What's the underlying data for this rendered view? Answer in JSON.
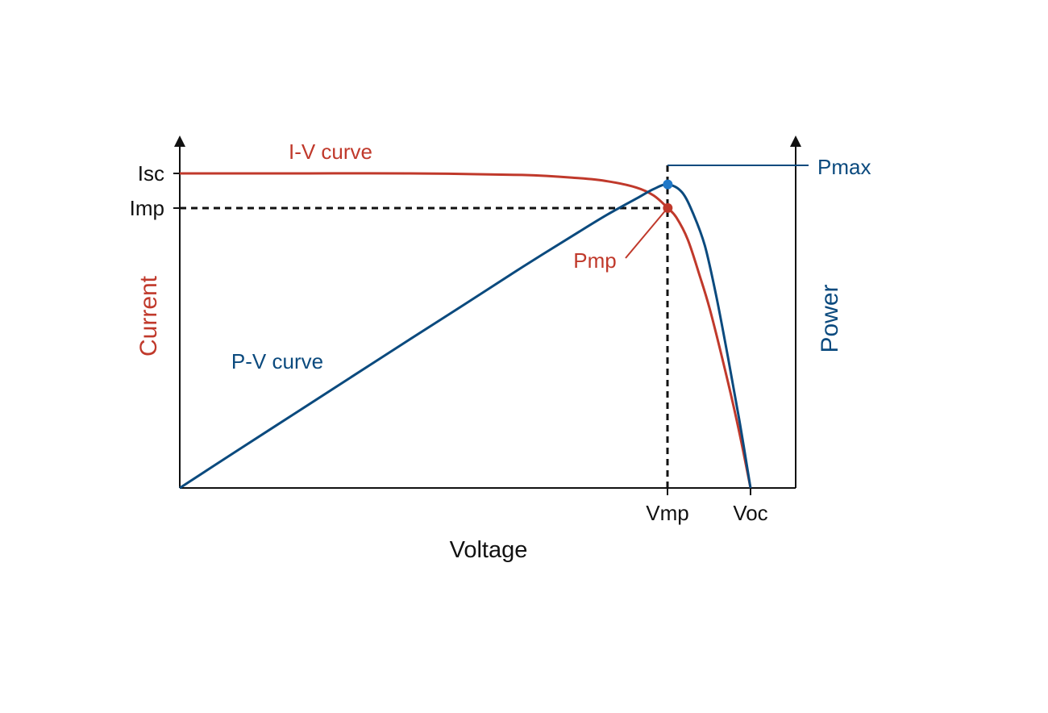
{
  "colors": {
    "iv": "#c0392b",
    "pv": "#0b4a7e",
    "axis": "#111111"
  },
  "labels": {
    "current": "Current",
    "power": "Power",
    "voltage": "Voltage",
    "isc": "Isc",
    "imp": "Imp",
    "vmp": "Vmp",
    "voc": "Voc",
    "iv_curve": "I-V curve",
    "pv_curve": "P-V curve",
    "pmp": "Pmp",
    "pmax": "Pmax"
  },
  "chart_data": {
    "type": "line",
    "xlabel": "Voltage",
    "ylabel_left": "Current",
    "ylabel_right": "Power",
    "xlim": [
      0,
      1.08
    ],
    "ylim": [
      0,
      1.1
    ],
    "x_ticks": [
      {
        "label": "Vmp",
        "value": 0.855
      },
      {
        "label": "Voc",
        "value": 1.0
      }
    ],
    "y_ticks": [
      {
        "label": "Isc",
        "value": 1.0
      },
      {
        "label": "Imp",
        "value": 0.89
      }
    ],
    "series": [
      {
        "name": "I-V curve",
        "x": [
          0,
          0.2,
          0.4,
          0.6,
          0.7,
          0.75,
          0.8,
          0.83,
          0.855,
          0.87,
          0.89,
          0.91,
          0.93,
          0.96,
          0.98,
          1.0
        ],
        "y": [
          1.0,
          1.0,
          1.0,
          0.995,
          0.985,
          0.975,
          0.955,
          0.93,
          0.89,
          0.86,
          0.79,
          0.68,
          0.56,
          0.34,
          0.18,
          0
        ]
      },
      {
        "name": "P-V curve",
        "x": [
          0,
          0.1,
          0.2,
          0.3,
          0.4,
          0.5,
          0.6,
          0.7,
          0.75,
          0.8,
          0.83,
          0.855,
          0.88,
          0.9,
          0.92,
          0.94,
          0.96,
          0.98,
          1.0
        ],
        "y": [
          0,
          0.118,
          0.235,
          0.352,
          0.469,
          0.585,
          0.702,
          0.815,
          0.87,
          0.92,
          0.95,
          0.965,
          0.94,
          0.87,
          0.77,
          0.61,
          0.42,
          0.22,
          0
        ]
      }
    ],
    "points": [
      {
        "name": "Pmp",
        "x": 0.855,
        "y": 0.89,
        "series": "I-V curve"
      },
      {
        "name": "Pmax",
        "x": 0.855,
        "y": 0.965,
        "series": "P-V curve"
      }
    ]
  }
}
